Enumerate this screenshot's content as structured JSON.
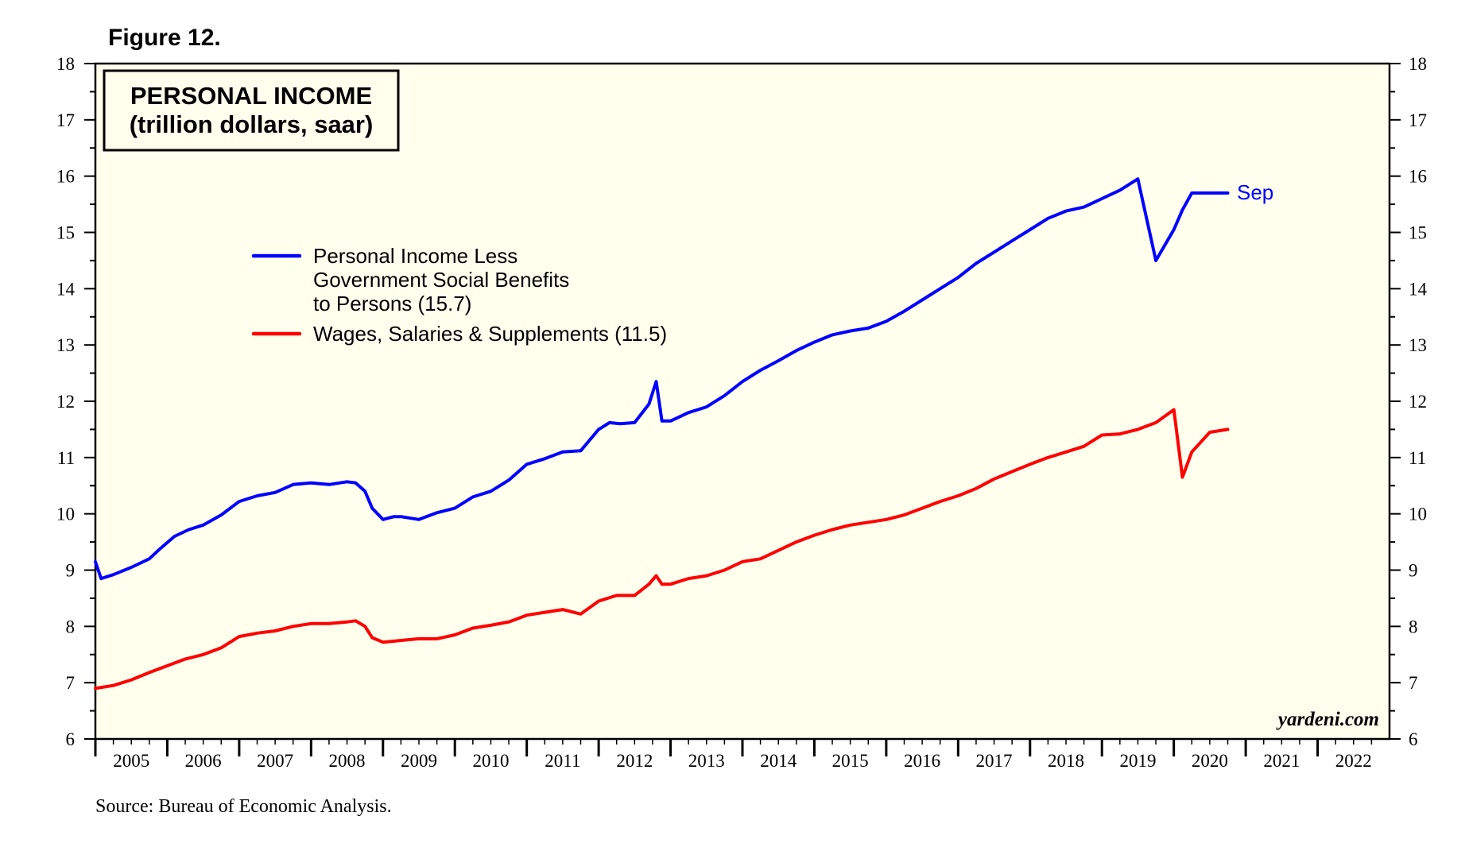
{
  "figure_label": "Figure 12.",
  "source": "Source: Bureau of Economic Analysis.",
  "watermark": "yardeni.com",
  "colors": {
    "background": "#ffffee",
    "series_1": "#0000ff",
    "series_2": "#ff0000"
  },
  "chart_data": {
    "type": "line",
    "title": "PERSONAL INCOME",
    "subtitle": "(trillion dollars, saar)",
    "xlabel": "",
    "ylabel": "",
    "xlim": [
      2005.0,
      2023.0
    ],
    "ylim": [
      6,
      18
    ],
    "y_ticks": [
      6,
      7,
      8,
      9,
      10,
      11,
      12,
      13,
      14,
      15,
      16,
      17,
      18
    ],
    "x_tick_labels": [
      "2005",
      "2006",
      "2007",
      "2008",
      "2009",
      "2010",
      "2011",
      "2012",
      "2013",
      "2014",
      "2015",
      "2016",
      "2017",
      "2018",
      "2019",
      "2020",
      "2021",
      "2022"
    ],
    "end_label": "Sep",
    "grid": false,
    "legend_position": "upper-left",
    "series": [
      {
        "name": "Personal Income Less Government Social Benefits to Persons (15.7)",
        "legend_lines": [
          "Personal Income Less",
          "Government Social Benefits",
          "to Persons (15.7)"
        ],
        "color": "#0000ff",
        "x": [
          2005.0,
          2005.08,
          2005.25,
          2005.5,
          2005.75,
          2005.9,
          2006.1,
          2006.3,
          2006.5,
          2006.75,
          2007.0,
          2007.25,
          2007.5,
          2007.75,
          2008.0,
          2008.25,
          2008.5,
          2008.62,
          2008.75,
          2008.85,
          2009.0,
          2009.15,
          2009.25,
          2009.5,
          2009.75,
          2010.0,
          2010.25,
          2010.5,
          2010.75,
          2011.0,
          2011.25,
          2011.5,
          2011.75,
          2012.0,
          2012.15,
          2012.3,
          2012.5,
          2012.7,
          2012.8,
          2012.88,
          2013.0,
          2013.25,
          2013.5,
          2013.75,
          2014.0,
          2014.25,
          2014.5,
          2014.75,
          2015.0,
          2015.25,
          2015.5,
          2015.75,
          2016.0,
          2016.25,
          2016.5,
          2016.75,
          2017.0,
          2017.25,
          2017.5,
          2017.75,
          2018.0,
          2018.25,
          2018.5,
          2018.75,
          2019.0,
          2019.25,
          2019.5,
          2019.75,
          2020.0,
          2020.12,
          2020.25,
          2020.5,
          2020.75
        ],
        "values": [
          9.15,
          8.85,
          8.92,
          9.05,
          9.2,
          9.38,
          9.6,
          9.72,
          9.8,
          9.98,
          10.22,
          10.32,
          10.38,
          10.52,
          10.55,
          10.52,
          10.57,
          10.55,
          10.4,
          10.1,
          9.9,
          9.95,
          9.95,
          9.9,
          10.02,
          10.1,
          10.3,
          10.4,
          10.6,
          10.88,
          10.98,
          11.1,
          11.12,
          11.5,
          11.62,
          11.6,
          11.62,
          11.95,
          12.35,
          11.65,
          11.65,
          11.8,
          11.9,
          12.1,
          12.35,
          12.55,
          12.72,
          12.9,
          13.05,
          13.18,
          13.25,
          13.3,
          13.42,
          13.6,
          13.8,
          14.0,
          14.2,
          14.45,
          14.65,
          14.85,
          15.05,
          15.25,
          15.38,
          15.45,
          15.6,
          15.75,
          15.95,
          14.5,
          15.05,
          15.4,
          15.7,
          15.7,
          15.7
        ]
      },
      {
        "name": "Wages, Salaries & Supplements (11.5)",
        "legend_lines": [
          "Wages, Salaries & Supplements (11.5)"
        ],
        "color": "#ff0000",
        "x": [
          2005.0,
          2005.25,
          2005.5,
          2005.75,
          2006.0,
          2006.25,
          2006.5,
          2006.75,
          2007.0,
          2007.25,
          2007.5,
          2007.75,
          2008.0,
          2008.25,
          2008.5,
          2008.62,
          2008.75,
          2008.85,
          2009.0,
          2009.25,
          2009.5,
          2009.75,
          2010.0,
          2010.25,
          2010.5,
          2010.75,
          2011.0,
          2011.25,
          2011.5,
          2011.75,
          2012.0,
          2012.25,
          2012.5,
          2012.7,
          2012.8,
          2012.88,
          2013.0,
          2013.25,
          2013.5,
          2013.75,
          2014.0,
          2014.25,
          2014.5,
          2014.75,
          2015.0,
          2015.25,
          2015.5,
          2015.75,
          2016.0,
          2016.25,
          2016.5,
          2016.75,
          2017.0,
          2017.25,
          2017.5,
          2017.75,
          2018.0,
          2018.25,
          2018.5,
          2018.75,
          2019.0,
          2019.25,
          2019.5,
          2019.75,
          2020.0,
          2020.12,
          2020.25,
          2020.5,
          2020.75
        ],
        "values": [
          6.9,
          6.95,
          7.05,
          7.18,
          7.3,
          7.42,
          7.5,
          7.62,
          7.82,
          7.88,
          7.92,
          8.0,
          8.05,
          8.05,
          8.08,
          8.1,
          8.0,
          7.8,
          7.72,
          7.75,
          7.78,
          7.78,
          7.85,
          7.97,
          8.02,
          8.08,
          8.2,
          8.25,
          8.3,
          8.22,
          8.45,
          8.55,
          8.55,
          8.75,
          8.9,
          8.75,
          8.75,
          8.85,
          8.9,
          9.0,
          9.15,
          9.2,
          9.35,
          9.5,
          9.62,
          9.72,
          9.8,
          9.85,
          9.9,
          9.98,
          10.1,
          10.22,
          10.32,
          10.45,
          10.62,
          10.75,
          10.88,
          11.0,
          11.1,
          11.2,
          11.4,
          11.42,
          11.5,
          11.62,
          11.85,
          10.65,
          11.1,
          11.45,
          11.5
        ]
      }
    ]
  }
}
